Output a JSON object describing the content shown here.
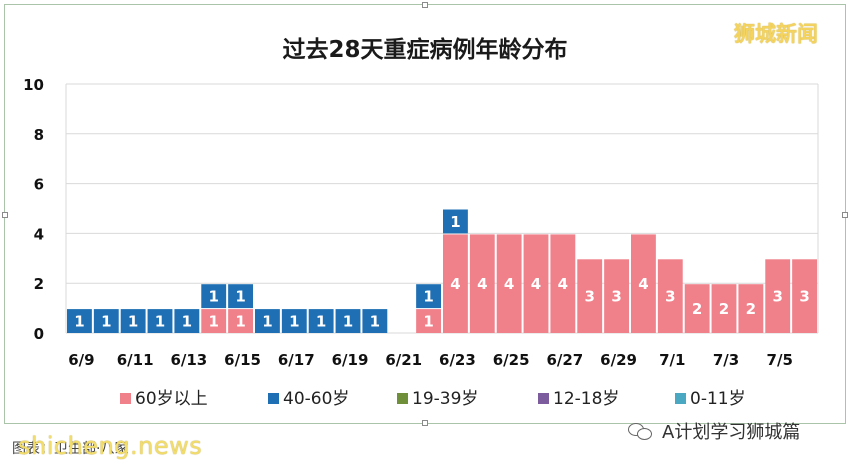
{
  "brand": "狮城新闻",
  "source_text": "图表：卫生部·八家",
  "watermark_left": "shicheng.news",
  "watermark_right": "A计划学习狮城篇",
  "colors": {
    "s60": "#f0808a",
    "s40": "#1f6fb4",
    "s19": "#6f8f3b",
    "s12": "#7c5c9c",
    "s0": "#4aa8c3"
  },
  "chart_data": {
    "type": "bar",
    "stacked": true,
    "title": "过去28天重症病例年龄分布",
    "categories": [
      "6/9",
      "6/10",
      "6/11",
      "6/12",
      "6/13",
      "6/14",
      "6/15",
      "6/16",
      "6/17",
      "6/18",
      "6/19",
      "6/20",
      "6/21",
      "6/22",
      "6/23",
      "6/24",
      "6/25",
      "6/26",
      "6/27",
      "6/28",
      "6/29",
      "6/30",
      "7/1",
      "7/2",
      "7/3",
      "7/4",
      "7/5",
      "7/6"
    ],
    "tick_labels": [
      "6/9",
      "6/11",
      "6/13",
      "6/15",
      "6/17",
      "6/19",
      "6/21",
      "6/23",
      "6/25",
      "6/27",
      "6/29",
      "7/1",
      "7/3",
      "7/5"
    ],
    "ylim": [
      0,
      10
    ],
    "yticks": [
      0,
      2,
      4,
      6,
      8,
      10
    ],
    "grid": true,
    "legend_position": "bottom",
    "series": [
      {
        "name": "60岁以上",
        "color": "#f0808a",
        "values": [
          0,
          0,
          0,
          0,
          0,
          1,
          1,
          0,
          0,
          0,
          0,
          0,
          0,
          1,
          4,
          4,
          4,
          4,
          4,
          3,
          3,
          4,
          3,
          2,
          2,
          2,
          3,
          3
        ]
      },
      {
        "name": "40-60岁",
        "color": "#1f6fb4",
        "values": [
          1,
          1,
          1,
          1,
          1,
          1,
          1,
          1,
          1,
          1,
          1,
          1,
          0,
          1,
          1,
          0,
          0,
          0,
          0,
          0,
          0,
          0,
          0,
          0,
          0,
          0,
          0,
          0
        ]
      },
      {
        "name": "19-39岁",
        "color": "#6f8f3b",
        "values": [
          0,
          0,
          0,
          0,
          0,
          0,
          0,
          0,
          0,
          0,
          0,
          0,
          0,
          0,
          0,
          0,
          0,
          0,
          0,
          0,
          0,
          0,
          0,
          0,
          0,
          0,
          0,
          0
        ]
      },
      {
        "name": "12-18岁",
        "color": "#7c5c9c",
        "values": [
          0,
          0,
          0,
          0,
          0,
          0,
          0,
          0,
          0,
          0,
          0,
          0,
          0,
          0,
          0,
          0,
          0,
          0,
          0,
          0,
          0,
          0,
          0,
          0,
          0,
          0,
          0,
          0
        ]
      },
      {
        "name": "0-11岁",
        "color": "#4aa8c3",
        "values": [
          0,
          0,
          0,
          0,
          0,
          0,
          0,
          0,
          0,
          0,
          0,
          0,
          0,
          0,
          0,
          0,
          0,
          0,
          0,
          0,
          0,
          0,
          0,
          0,
          0,
          0,
          0,
          0
        ]
      }
    ]
  }
}
